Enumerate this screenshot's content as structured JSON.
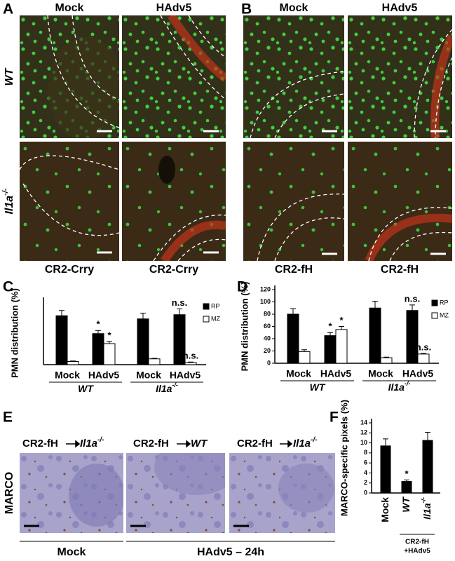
{
  "panel_labels": [
    "A",
    "B",
    "C",
    "D",
    "E",
    "F"
  ],
  "figure_a": {
    "columns": [
      "Mock",
      "HAdv5"
    ],
    "rows": [
      {
        "text": "WT"
      },
      {
        "text": "Il1a",
        "sup": "-/-"
      }
    ],
    "captions": [
      "CR2-Crry",
      "CR2-Crry"
    ]
  },
  "figure_b": {
    "columns": [
      "Mock",
      "HAdv5"
    ],
    "captions": [
      "CR2-fH",
      "CR2-fH"
    ]
  },
  "figure_e": {
    "row_label": "MARCO",
    "images": [
      {
        "donor": "CR2-fH",
        "recipient": {
          "text": "Il1a",
          "sup": "-/-"
        }
      },
      {
        "donor": "CR2-fH",
        "recipient": {
          "text": "WT"
        }
      },
      {
        "donor": "CR2-fH",
        "recipient": {
          "text": "Il1a",
          "sup": "-/-"
        }
      }
    ],
    "groups": [
      "Mock",
      "HAdv5 – 24h"
    ]
  },
  "chart_data": [
    {
      "type": "bar",
      "ylabel": "PMN distribution (%)",
      "categories": [
        "Mock",
        "HAdv5",
        "Mock",
        "HAdv5"
      ],
      "groups": [
        {
          "text": "WT"
        },
        {
          "text": "Il1a",
          "sup": "-/-"
        }
      ],
      "ylim": [
        0,
        120
      ],
      "series": [
        {
          "name": "RP",
          "color": "#000000",
          "values": [
            93,
            59,
            87,
            95
          ],
          "errors": [
            10,
            6,
            11,
            11
          ],
          "annotations": [
            null,
            "*",
            null,
            "n.s."
          ]
        },
        {
          "name": "MZ",
          "color": "#ffffff",
          "values": [
            6,
            40,
            11,
            4
          ],
          "errors": [
            1,
            4,
            1,
            1
          ],
          "annotations": [
            null,
            "*",
            null,
            "n.s."
          ]
        }
      ]
    },
    {
      "type": "bar",
      "ylabel": "PMN distribution (%)",
      "categories": [
        "Mock",
        "HAdv5",
        "Mock",
        "HAdv5"
      ],
      "groups": [
        {
          "text": "WT"
        },
        {
          "text": "Il1a",
          "sup": "-/-"
        }
      ],
      "ylim": [
        0,
        120
      ],
      "yticks": [
        0,
        20,
        40,
        60,
        80,
        100,
        120
      ],
      "series": [
        {
          "name": "RP",
          "color": "#000000",
          "values": [
            80,
            45,
            90,
            86
          ],
          "errors": [
            9,
            5,
            11,
            9
          ],
          "annotations": [
            null,
            "*",
            null,
            "n.s."
          ]
        },
        {
          "name": "MZ",
          "color": "#ffffff",
          "values": [
            19,
            55,
            9,
            15
          ],
          "errors": [
            3,
            5,
            1,
            1
          ],
          "annotations": [
            null,
            "*",
            null,
            "n.s."
          ]
        }
      ]
    },
    {
      "type": "bar",
      "ylabel": "MARCO-specific pixels (%)",
      "categories": [
        {
          "text": "Mock"
        },
        {
          "text": "WT"
        },
        {
          "text": "Il1a",
          "sup": "-/-"
        }
      ],
      "group_label": [
        "CR2-fH",
        "+HAdv5"
      ],
      "ylim": [
        0,
        14
      ],
      "yticks": [
        0,
        2,
        4,
        6,
        8,
        10,
        12,
        14
      ],
      "series": [
        {
          "color": "#000000",
          "values": [
            9.4,
            2.3,
            10.5
          ],
          "errors": [
            1.4,
            0.3,
            1.6
          ],
          "annotations": [
            null,
            "*",
            null
          ]
        }
      ]
    }
  ]
}
